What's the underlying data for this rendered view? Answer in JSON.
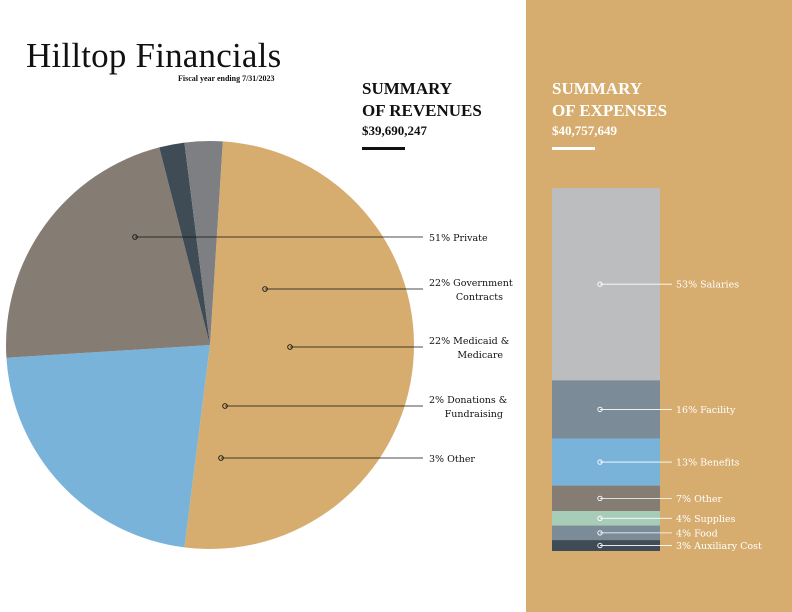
{
  "header": {
    "title": "Hilltop Financials",
    "subtitle": "Fiscal year ending 7/31/2023"
  },
  "revenues": {
    "heading_line1": "SUMMARY",
    "heading_line2": "OF REVENUES",
    "total": "$39,690,247"
  },
  "expenses": {
    "heading_line1": "SUMMARY",
    "heading_line2": "OF EXPENSES",
    "total": "$40,757,649"
  },
  "colors": {
    "private": "#d6ad6f",
    "government": "#7ab3d9",
    "medicaid": "#857c74",
    "donations": "#3f4c56",
    "other": "#7d7f82",
    "salaries": "#bcbdbf",
    "facility": "#7b8c98",
    "benefits": "#7ab3d9",
    "exp_other": "#857c74",
    "supplies": "#a7cdb9",
    "food": "#7b8c98",
    "auxiliary": "#3f4c56",
    "panel": "#d6ad6f"
  },
  "chart_data": [
    {
      "type": "pie",
      "title": "",
      "slices": [
        {
          "percent": 51,
          "label_lines": [
            "51% Private"
          ]
        },
        {
          "percent": 22,
          "label_lines": [
            "22% Government",
            "Contracts"
          ]
        },
        {
          "percent": 22,
          "label_lines": [
            "22% Medicaid &",
            "Medicare"
          ]
        },
        {
          "percent": 2,
          "label_lines": [
            "2% Donations &",
            "Fundraising"
          ]
        },
        {
          "percent": 3,
          "label_lines": [
            "3% Other"
          ]
        }
      ]
    },
    {
      "type": "bar",
      "title": "",
      "categories": [
        "53% Salaries",
        "16% Facility",
        "13% Benefits",
        "7% Other",
        "4% Supplies",
        "4% Food",
        "3% Auxiliary Cost"
      ],
      "values": [
        53,
        16,
        13,
        7,
        4,
        4,
        3
      ]
    }
  ]
}
